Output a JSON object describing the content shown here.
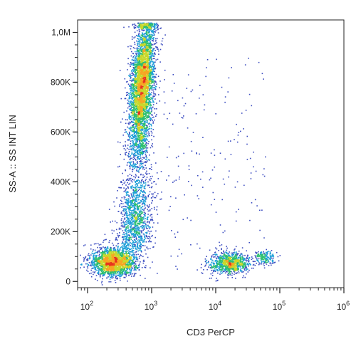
{
  "chart_data": {
    "type": "scatter",
    "title": "",
    "xlabel": "CD3 PerCP",
    "ylabel": "SS-A :: SS INT LIN",
    "x_scale": "log",
    "y_scale": "linear",
    "xlim": [
      70,
      1000000
    ],
    "ylim": [
      -25000,
      1050000
    ],
    "grid": false,
    "color_mode": "density",
    "x_ticks": [
      {
        "value": 100,
        "base": "10",
        "exp": "2"
      },
      {
        "value": 1000,
        "base": "10",
        "exp": "3"
      },
      {
        "value": 10000,
        "base": "10",
        "exp": "4"
      },
      {
        "value": 100000,
        "base": "10",
        "exp": "5"
      },
      {
        "value": 1000000,
        "base": "10",
        "exp": "6"
      }
    ],
    "y_ticks": [
      {
        "value": 0,
        "label": "0"
      },
      {
        "value": 200000,
        "label": "200K"
      },
      {
        "value": 400000,
        "label": "400K"
      },
      {
        "value": 600000,
        "label": "600K"
      },
      {
        "value": 800000,
        "label": "800K"
      },
      {
        "value": 1000000,
        "label": "1,0M"
      }
    ],
    "populations": [
      {
        "x_center": 700,
        "x_spread_log10": 0.09,
        "y_range": [
          450000,
          1040000
        ],
        "y_peak": 780000,
        "weight": 0.46
      },
      {
        "x_center": 550,
        "x_spread_log10": 0.13,
        "y_range": [
          120000,
          520000
        ],
        "y_peak": 260000,
        "weight": 0.14
      },
      {
        "x_center": 250,
        "x_spread_log10": 0.18,
        "y_center": 80000,
        "y_spread": 28000,
        "weight": 0.22
      },
      {
        "x_center": 16000,
        "x_spread_log10": 0.15,
        "y_center": 75000,
        "y_spread": 22000,
        "weight": 0.1
      },
      {
        "x_center": 55000,
        "x_spread_log10": 0.08,
        "y_center": 100000,
        "y_spread": 15000,
        "weight": 0.02
      },
      {
        "x_range": [
          1500,
          60000
        ],
        "y_range": [
          20000,
          900000
        ],
        "scatter": "sparse",
        "weight": 0.02
      }
    ],
    "density_colors": [
      "#3b4cc0",
      "#1f9fd8",
      "#2dbf6f",
      "#c8d82b",
      "#f6a623",
      "#e8321e"
    ]
  }
}
